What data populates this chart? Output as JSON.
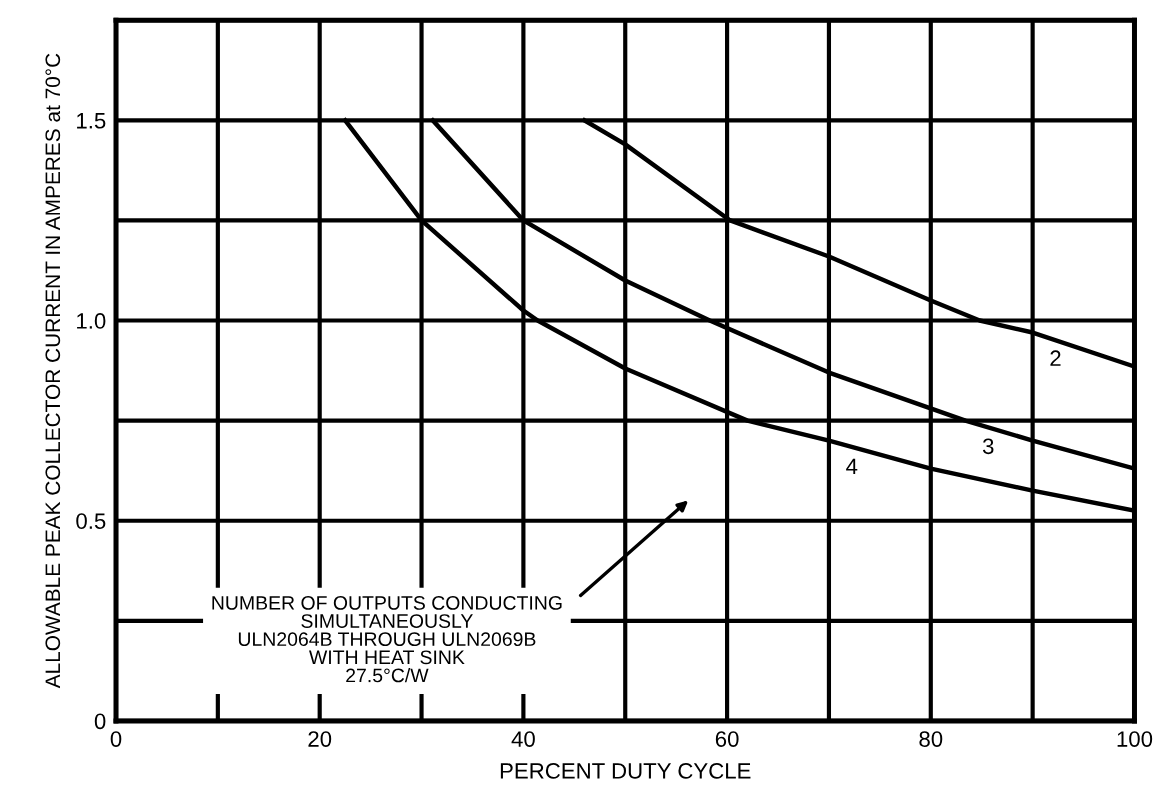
{
  "chart_data": {
    "type": "line",
    "xlabel": "PERCENT DUTY CYCLE",
    "ylabel": "ALLOWABLE PEAK COLLECTOR CURRENT IN AMPERES at 70°C",
    "series": [
      {
        "name": "2",
        "color": "#000000",
        "x": [
          46,
          50,
          60.3,
          70,
          80,
          84.8,
          90,
          100
        ],
        "values": [
          1.5,
          1.44,
          1.25,
          1.16,
          1.05,
          1.0,
          0.97,
          0.885
        ]
      },
      {
        "name": "3",
        "color": "#000000",
        "x": [
          31.1,
          40,
          50,
          58.3,
          70,
          83.4,
          90,
          100
        ],
        "values": [
          1.5,
          1.25,
          1.1,
          1.0,
          0.87,
          0.75,
          0.7,
          0.63
        ]
      },
      {
        "name": "4",
        "color": "#000000",
        "x": [
          22.5,
          30,
          40,
          41.4,
          50,
          62,
          70,
          80,
          90,
          100
        ],
        "values": [
          1.5,
          1.25,
          1.025,
          1.0,
          0.88,
          0.75,
          0.7,
          0.63,
          0.575,
          0.525
        ]
      }
    ],
    "annotations": [
      "NUMBER OF OUTPUTS CONDUCTING\nSIMULTANEOUSLY\nULN2064B THROUGH ULN2069B\nWITH HEAT SINK\n27.5°C/W"
    ],
    "xlim": [
      0,
      100
    ],
    "ylim": [
      0,
      1.75
    ],
    "xticks": [
      0,
      {
        "value": 10,
        "label": null
      },
      20,
      {
        "value": 30,
        "label": null
      },
      40,
      {
        "value": 50,
        "label": null
      },
      60,
      {
        "value": 70,
        "label": null
      },
      80,
      {
        "value": 90,
        "label": null
      },
      100
    ],
    "yticks": [
      0,
      {
        "value": 0.25,
        "label": null
      },
      {
        "value": 0.5,
        "label": "0.5"
      },
      {
        "value": 0.75,
        "label": null
      },
      {
        "value": 1.0,
        "label": "1.0"
      },
      {
        "value": 1.25,
        "label": null
      },
      {
        "value": 1.5,
        "label": "1.5"
      },
      {
        "value": 1.75,
        "label": null
      }
    ],
    "grid": true,
    "legend": false,
    "marker": "none",
    "line_style": "solid"
  }
}
